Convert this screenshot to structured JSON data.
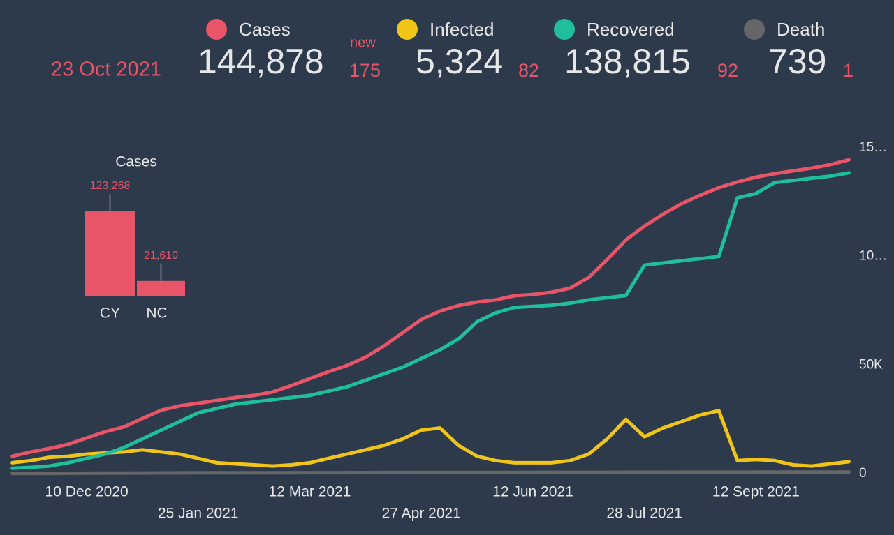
{
  "header": {
    "date": "23 Oct 2021",
    "new_label": "new",
    "stats": [
      {
        "name": "Cases",
        "color": "#e85468",
        "total": "144,878",
        "new": "175"
      },
      {
        "name": "Infected",
        "color": "#f0c419",
        "total": "5,324",
        "new": "82"
      },
      {
        "name": "Recovered",
        "color": "#1fbf9b",
        "total": "138,815",
        "new": "92"
      },
      {
        "name": "Death",
        "color": "#666666",
        "total": "739",
        "new": "1"
      }
    ]
  },
  "chart_data": [
    {
      "type": "line",
      "categories": [
        null,
        null,
        null,
        null,
        "10 Dec 2020",
        null,
        null,
        null,
        null,
        null,
        "25 Jan 2021",
        null,
        null,
        null,
        null,
        null,
        "12 Mar 2021",
        null,
        null,
        null,
        null,
        null,
        "27 Apr 2021",
        null,
        null,
        null,
        null,
        null,
        "12 Jun 2021",
        null,
        null,
        null,
        null,
        null,
        "28 Jul 2021",
        null,
        null,
        null,
        null,
        null,
        "12 Sept 2021",
        null,
        null,
        null,
        null,
        null
      ],
      "series": [
        {
          "name": "Death",
          "color": "#666666",
          "values": [
            100,
            120,
            140,
            170,
            200,
            230,
            260,
            290,
            320,
            350,
            370,
            390,
            400,
            410,
            420,
            430,
            440,
            450,
            460,
            480,
            500,
            520,
            540,
            560,
            570,
            580,
            585,
            590,
            595,
            600,
            605,
            610,
            620,
            630,
            640,
            650,
            660,
            670,
            680,
            690,
            700,
            710,
            720,
            725,
            732,
            739
          ]
        },
        {
          "name": "Infected",
          "color": "#f0c419",
          "values": [
            5000,
            6000,
            7500,
            8000,
            9000,
            9500,
            10000,
            11000,
            10000,
            9000,
            7000,
            5000,
            4500,
            4000,
            3500,
            4000,
            5000,
            7000,
            9000,
            11000,
            13000,
            16000,
            20000,
            21000,
            13000,
            8000,
            6000,
            5000,
            5000,
            5000,
            6000,
            9000,
            16000,
            25000,
            17000,
            21000,
            24000,
            27000,
            29000,
            6000,
            6500,
            6000,
            4000,
            3500,
            4500,
            5500
          ]
        },
        {
          "name": "Recovered",
          "color": "#1fbf9b",
          "values": [
            2500,
            2900,
            3500,
            5000,
            7000,
            9000,
            12000,
            16000,
            20000,
            24000,
            28000,
            30000,
            32000,
            33000,
            34000,
            35000,
            36000,
            38000,
            40000,
            43000,
            46000,
            49000,
            53000,
            57000,
            62000,
            70000,
            74000,
            76500,
            77000,
            77500,
            78500,
            80000,
            81000,
            82000,
            96000,
            97000,
            98000,
            99000,
            100000,
            127000,
            129000,
            134000,
            135000,
            136000,
            137000,
            138500
          ]
        },
        {
          "name": "Cases",
          "color": "#e85468",
          "values": [
            8000,
            10000,
            11600,
            13500,
            16400,
            19300,
            21500,
            25400,
            29200,
            31200,
            32400,
            33700,
            35000,
            36000,
            37600,
            40500,
            43700,
            46900,
            49800,
            53600,
            58800,
            64900,
            71000,
            74800,
            77400,
            79000,
            80000,
            81900,
            82500,
            83500,
            85400,
            90300,
            98600,
            107600,
            114000,
            119500,
            124300,
            128200,
            131700,
            134300,
            136500,
            138100,
            139400,
            140700,
            142300,
            144500
          ]
        }
      ],
      "ylim": [
        0,
        150000
      ],
      "yticks": [
        {
          "value": 150000,
          "label": "15…"
        },
        {
          "value": 100000,
          "label": "10…"
        },
        {
          "value": 50000,
          "label": "50K"
        },
        0
      ]
    },
    {
      "type": "bar",
      "title": "Cases",
      "categories": [
        "CY",
        "NC"
      ],
      "values": [
        123268,
        21610
      ],
      "value_labels": [
        "123,268",
        "21,610"
      ],
      "color": "#e85468"
    }
  ]
}
